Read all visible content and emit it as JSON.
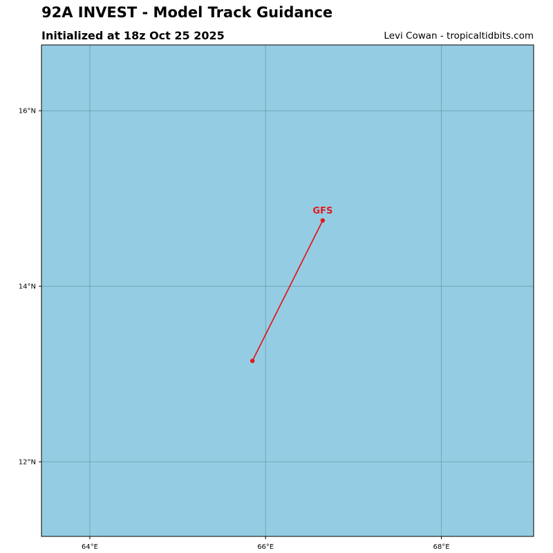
{
  "header": {
    "title": "92A INVEST - Model Track Guidance",
    "subtitle": "Initialized at 18z Oct 25 2025",
    "credit": "Levi Cowan - tropicaltidbits.com"
  },
  "colors": {
    "ocean": "#94cde3",
    "grid": "#4f7f8c",
    "track": "#e31a1c",
    "frame": "#000000"
  },
  "chart_data": {
    "type": "map-track",
    "lon_range": [
      63.45,
      69.05
    ],
    "lat_range": [
      11.15,
      16.75
    ],
    "lon_ticks": [
      {
        "value": 64,
        "label": "64°E"
      },
      {
        "value": 66,
        "label": "66°E"
      },
      {
        "value": 68,
        "label": "68°E"
      }
    ],
    "lat_ticks": [
      {
        "value": 16,
        "label": "16°N"
      },
      {
        "value": 14,
        "label": "14°N"
      },
      {
        "value": 12,
        "label": "12°N"
      }
    ],
    "grid": true,
    "tracks": [
      {
        "name": "GFS",
        "points": [
          {
            "lon": 65.85,
            "lat": 13.15
          },
          {
            "lon": 66.65,
            "lat": 14.75
          }
        ]
      }
    ]
  }
}
